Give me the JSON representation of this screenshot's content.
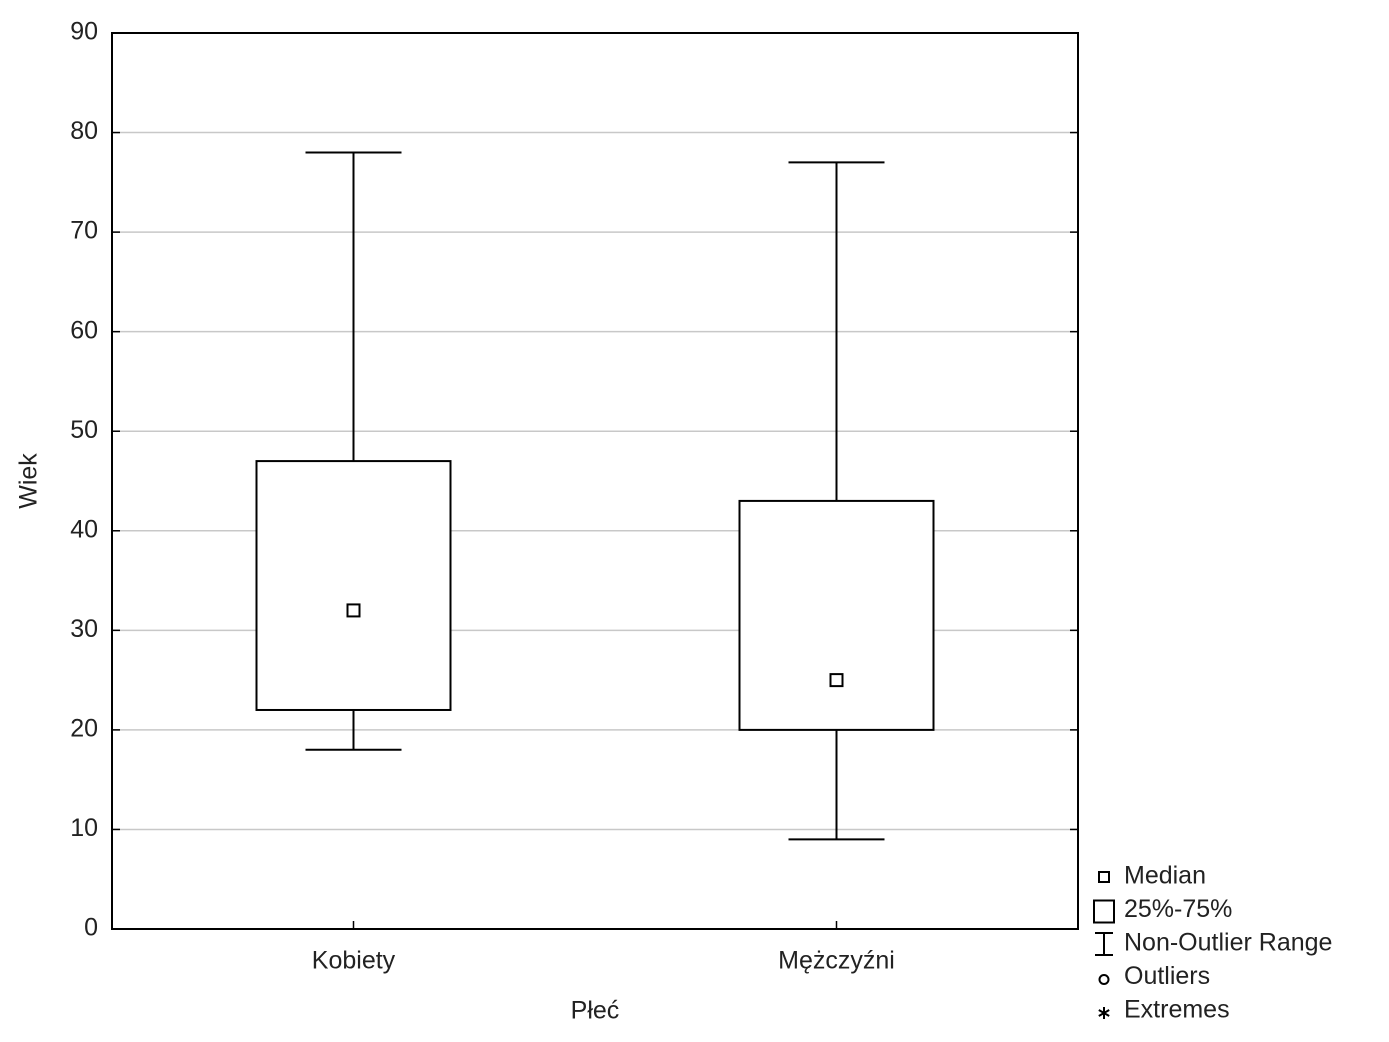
{
  "chart_data": {
    "type": "box",
    "x_label": "Płeć",
    "y_label": "Wiek",
    "categories": [
      "Kobiety",
      "Mężczyźni"
    ],
    "boxes": [
      {
        "min": 18,
        "q1": 22,
        "median": 32,
        "q3": 47,
        "max": 78
      },
      {
        "min": 9,
        "q1": 20,
        "median": 25,
        "q3": 43,
        "max": 77
      }
    ],
    "ylim": [
      0,
      90
    ],
    "yticks": [
      0,
      10,
      20,
      30,
      40,
      50,
      60,
      70,
      80,
      90
    ],
    "grid": true,
    "color": "#000000",
    "legend": [
      "Median",
      "25%-75%",
      "Non-Outlier Range",
      "Outliers",
      "Extremes"
    ],
    "legend_position": "bottom-right"
  }
}
